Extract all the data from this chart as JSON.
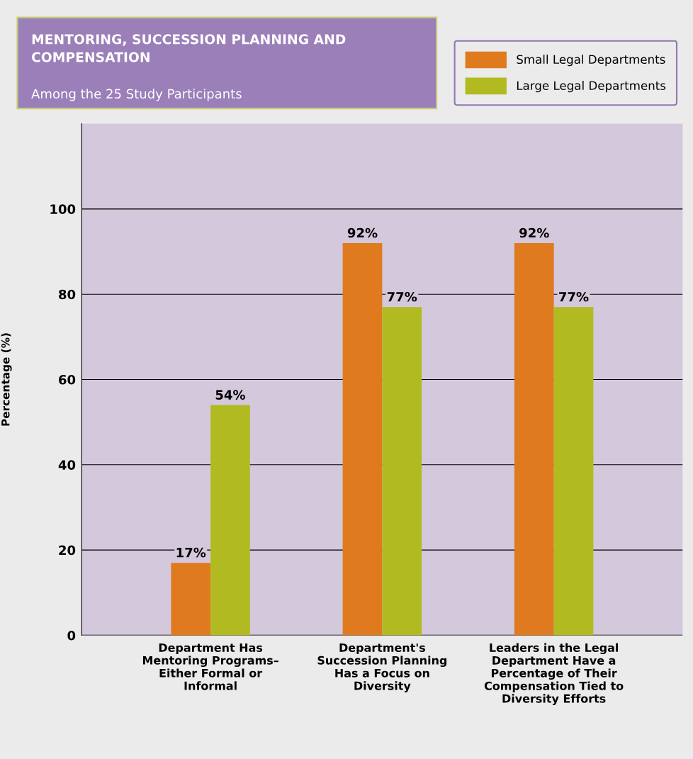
{
  "chart_data": {
    "type": "bar",
    "title": "MENTORING, SUCCESSION PLANNING AND\nCOMPENSATION",
    "subtitle": "Among the 25 Study Participants",
    "ylabel": "Percentage (%)",
    "categories": [
      "Department Has\nMentoring Programs–\nEither Formal or\nInformal",
      "Department's\nSuccession Planning\nHas a Focus on\nDiversity",
      "Leaders in the Legal\nDepartment Have a\nPercentage of Their\nCompensation Tied to\nDiversity Efforts"
    ],
    "series": [
      {
        "name": "Small Legal Departments",
        "color": "#e07a1f",
        "values": [
          17,
          92,
          92
        ],
        "value_labels": [
          "17%",
          "92%",
          "92%"
        ]
      },
      {
        "name": "Large Legal Departments",
        "color": "#b1bb21",
        "values": [
          54,
          77,
          77
        ],
        "value_labels": [
          "54%",
          "77%",
          "77%"
        ]
      }
    ],
    "ylim": [
      0,
      120
    ],
    "yticks": [
      0,
      20,
      40,
      60,
      80,
      100
    ],
    "grid": "y",
    "legend": "top right"
  }
}
